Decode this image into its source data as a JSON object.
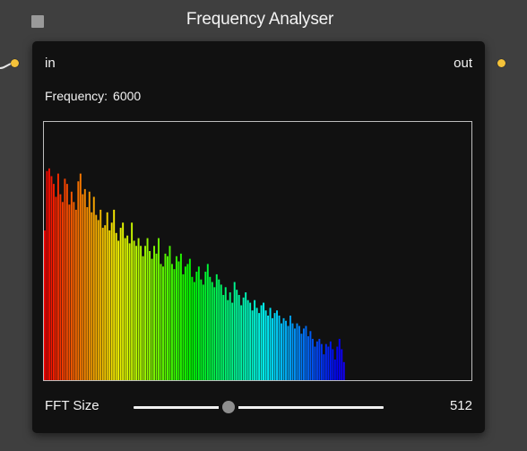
{
  "node": {
    "title": "Frequency Analyser",
    "input_label": "in",
    "output_label": "out",
    "frequency_label": "Frequency:",
    "frequency_value": "6000",
    "fft_label": "FFT Size",
    "fft_value": "512",
    "fft_slider_fraction": 0.38
  },
  "colors": {
    "background": "#3f3f3f",
    "node_body": "#111111",
    "port": "#f4c23a",
    "spectrum_border": "#bdbdbd"
  },
  "icons": {
    "title_square": "collapse-square-icon",
    "ports": "port-dot-icon"
  },
  "spectrum": {
    "visible_fraction": 0.705,
    "levels": [
      0.58,
      0.81,
      0.82,
      0.79,
      0.76,
      0.71,
      0.8,
      0.72,
      0.69,
      0.78,
      0.76,
      0.68,
      0.73,
      0.69,
      0.66,
      0.77,
      0.8,
      0.72,
      0.74,
      0.67,
      0.73,
      0.65,
      0.71,
      0.64,
      0.62,
      0.66,
      0.59,
      0.6,
      0.65,
      0.58,
      0.61,
      0.66,
      0.57,
      0.54,
      0.59,
      0.61,
      0.55,
      0.56,
      0.53,
      0.61,
      0.54,
      0.52,
      0.55,
      0.52,
      0.48,
      0.52,
      0.55,
      0.5,
      0.47,
      0.52,
      0.49,
      0.55,
      0.45,
      0.44,
      0.49,
      0.48,
      0.52,
      0.45,
      0.43,
      0.48,
      0.46,
      0.49,
      0.41,
      0.44,
      0.45,
      0.47,
      0.4,
      0.38,
      0.42,
      0.44,
      0.39,
      0.37,
      0.42,
      0.45,
      0.4,
      0.38,
      0.36,
      0.41,
      0.39,
      0.37,
      0.33,
      0.36,
      0.31,
      0.34,
      0.3,
      0.38,
      0.35,
      0.33,
      0.29,
      0.32,
      0.34,
      0.31,
      0.3,
      0.27,
      0.31,
      0.28,
      0.26,
      0.29,
      0.3,
      0.27,
      0.25,
      0.28,
      0.24,
      0.26,
      0.27,
      0.25,
      0.22,
      0.24,
      0.23,
      0.21,
      0.25,
      0.22,
      0.2,
      0.22,
      0.21,
      0.18,
      0.2,
      0.21,
      0.17,
      0.19,
      0.16,
      0.13,
      0.15,
      0.16,
      0.14,
      0.1,
      0.14,
      0.13,
      0.15,
      0.12,
      0.08,
      0.13,
      0.16,
      0.12,
      0.07
    ]
  }
}
